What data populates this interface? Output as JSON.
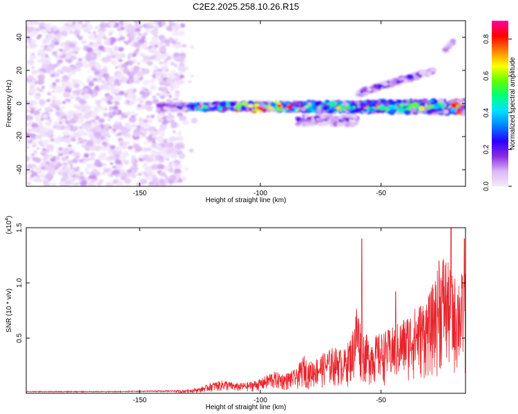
{
  "title": "C2E2.2025.258.10.26.R15",
  "chart_data": [
    {
      "type": "heatmap",
      "title": "C2E2.2025.258.10.26.R15",
      "xlabel": "Height of straight line (km)",
      "ylabel": "Frequency (Hz)",
      "xlim": [
        -197,
        -15
      ],
      "ylim": [
        -50,
        50
      ],
      "xticks": [
        -150,
        -100,
        -50
      ],
      "yticks": [
        -40,
        -20,
        0,
        20,
        40
      ],
      "xtick_labels": [
        "-150",
        "-100",
        "-50"
      ],
      "ytick_labels": [
        "-40",
        "-20",
        "0",
        "20",
        "40"
      ],
      "colorbar": {
        "label": "Normalized spectral amplitude",
        "range": [
          0,
          0.9
        ],
        "ticks": [
          0.0,
          0.2,
          0.4,
          0.6,
          0.8
        ],
        "tick_labels": [
          "0.0",
          "0.2",
          "0.4",
          "0.6",
          "0.8"
        ],
        "colors": [
          "#f5eafc",
          "#d9b8f5",
          "#8a2be2",
          "#2a00ff",
          "#0080ff",
          "#00e0ff",
          "#00ff80",
          "#60ff00",
          "#ffff00",
          "#ff8000",
          "#ff0000",
          "#ff00a0"
        ]
      },
      "noise_region": {
        "x_range": [
          -197,
          -132
        ],
        "amplitude_range": [
          0.0,
          0.1
        ]
      },
      "features": [
        {
          "name": "main band",
          "x_start": -142,
          "x_end": -15,
          "frequency": -2,
          "half_width_start": 1.5,
          "half_width_end": 4,
          "peak_amplitude": 0.85
        },
        {
          "name": "lower branch",
          "x_start": -85,
          "x_end": -60,
          "frequency": -10,
          "half_width": 3,
          "peak_amplitude": 0.25
        },
        {
          "name": "upper branch",
          "x_start": -60,
          "x_end": -28,
          "frequency_start": 6,
          "frequency_end": 20,
          "peak_amplitude": 0.3
        },
        {
          "name": "upper streak",
          "x_start": -24,
          "x_end": -20,
          "frequency_start": 32,
          "frequency_end": 37,
          "peak_amplitude": 0.2
        }
      ]
    },
    {
      "type": "line",
      "xlabel": "Height of straight line (km)",
      "ylabel": "SNR (10 * v/v)",
      "y_multiplier": "(x10",
      "y_multiplier_exponent": "4",
      "y_multiplier_close": ")",
      "xlim": [
        -197,
        -15
      ],
      "ylim": [
        0,
        1.5
      ],
      "xticks": [
        -150,
        -100,
        -50
      ],
      "yticks": [
        0.5,
        1.0,
        1.5
      ],
      "xtick_labels": [
        "-150",
        "-100",
        "-50"
      ],
      "ytick_labels": [
        "0.5",
        "1.0",
        "1.5"
      ],
      "line_color": "#e8232b",
      "series": [
        {
          "name": "SNR",
          "x": [
            -197,
            -180,
            -160,
            -140,
            -132,
            -125,
            -120,
            -115,
            -110,
            -105,
            -100,
            -95,
            -90,
            -85,
            -82,
            -80,
            -75,
            -70,
            -65,
            -62,
            -60,
            -58,
            -55,
            -50,
            -45,
            -40,
            -35,
            -30,
            -27,
            -24,
            -20,
            -18,
            -15
          ],
          "envelope": [
            0.02,
            0.02,
            0.02,
            0.025,
            0.03,
            0.05,
            0.1,
            0.12,
            0.09,
            0.1,
            0.13,
            0.2,
            0.18,
            0.22,
            0.35,
            0.28,
            0.35,
            0.42,
            0.4,
            0.55,
            0.85,
            0.6,
            0.5,
            0.55,
            0.6,
            0.7,
            0.8,
            0.9,
            1.1,
            1.3,
            1.05,
            1.1,
            1.1
          ]
        }
      ],
      "peaks": [
        {
          "x": -58,
          "value": 1.4
        },
        {
          "x": -44,
          "value": 0.92
        },
        {
          "x": -26,
          "value": 1.2
        },
        {
          "x": -21,
          "value": 1.5
        },
        {
          "x": -15.5,
          "value": 1.4
        }
      ]
    }
  ]
}
